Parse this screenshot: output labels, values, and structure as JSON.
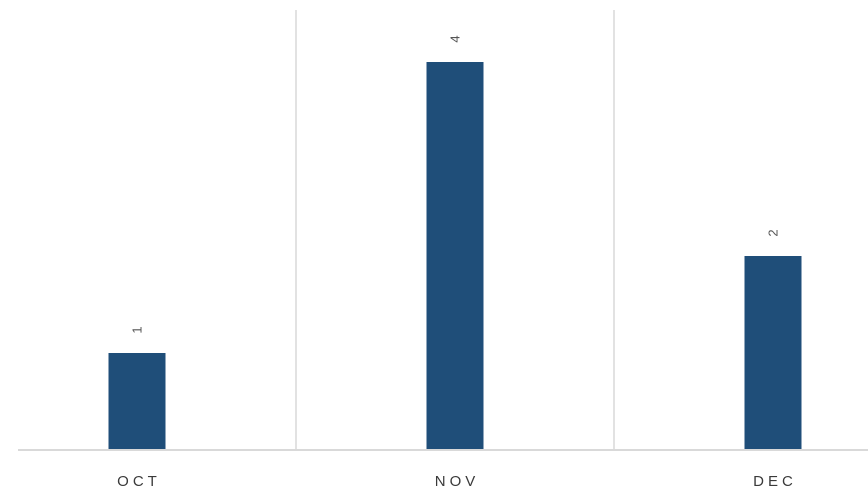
{
  "chart_data": {
    "type": "bar",
    "categories": [
      "OCT",
      "NOV",
      "DEC"
    ],
    "values": [
      1,
      4,
      2
    ],
    "title": "",
    "xlabel": "",
    "ylabel": "",
    "ylim": [
      0,
      4.5
    ],
    "grid": false,
    "legend": "none",
    "bar_color": "#1f4e79",
    "data_labels": [
      "1",
      "4",
      "2"
    ]
  }
}
